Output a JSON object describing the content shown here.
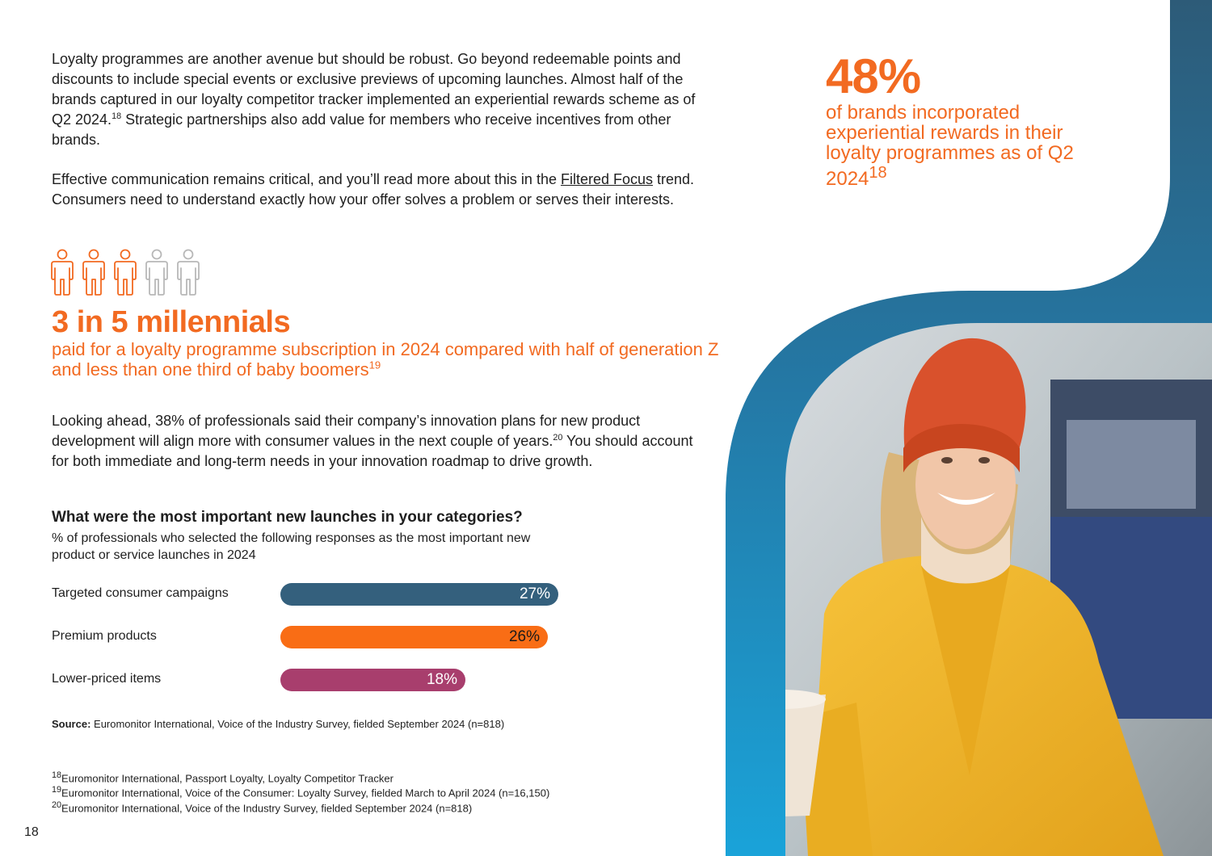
{
  "intro": {
    "paragraph_1": "Loyalty programmes are another avenue but should be robust. Go beyond redeemable points and discounts to include special events or exclusive previews of upcoming launches. Almost half of the brands captured in our loyalty competitor tracker implemented an experiential rewards scheme as of Q2 2024.",
    "paragraph_1_ref": "18",
    "paragraph_1_tail": " Strategic partnerships also add value for members who receive incentives from other brands.",
    "paragraph_2_start": "Effective communication remains critical, and you’ll read more about this in the ",
    "paragraph_2_link": "Filtered Focus",
    "paragraph_2_end": " trend. Consumers need to understand exactly how your offer solves a problem or serves their interests."
  },
  "millennials_stat": {
    "people_highlighted": 3,
    "people_total": 5,
    "headline": "3 in 5 millennials",
    "description": "paid for a loyalty programme subscription in 2024 compared with half of generation Z and less than one third of baby boomers",
    "ref": "19"
  },
  "highlight": {
    "value": "48%",
    "description": "of brands incorporated experiential rewards in their loyalty programmes as of Q2 2024",
    "ref": "18"
  },
  "outlook": {
    "text": "Looking ahead, 38% of professionals said their company’s innovation plans for new product development will align more with consumer values in the next couple of years.",
    "ref": "20",
    "tail": " You should account for both immediate and long-term needs in your innovation roadmap to drive growth."
  },
  "chart_data": {
    "type": "bar",
    "orientation": "horizontal",
    "title": "What were the most important new launches in your categories?",
    "subtitle": "% of professionals who selected the following responses as the most important new product or service launches in 2024",
    "categories": [
      "Targeted consumer campaigns",
      "Premium products",
      "Lower-priced items"
    ],
    "values": [
      27,
      26,
      18
    ],
    "value_labels": [
      "27%",
      "26%",
      "18%"
    ],
    "colors": [
      "#34607d",
      "#f96d15",
      "#a83e6d"
    ],
    "xlim": [
      0,
      27
    ]
  },
  "source": {
    "label": "Source:",
    "text": " Euromonitor International, Voice of the Industry Survey, fielded September 2024 (n=818)"
  },
  "footnotes": [
    {
      "num": "18",
      "text": "Euromonitor International, Passport Loyalty, Loyalty Competitor Tracker"
    },
    {
      "num": "19",
      "text": "Euromonitor International, Voice of the Consumer: Loyalty Survey, fielded March to April 2024 (n=16,150)"
    },
    {
      "num": "20",
      "text": "Euromonitor International, Voice of the Industry Survey, fielded September 2024 (n=818)"
    }
  ],
  "page_number": "18",
  "colors": {
    "orange": "#f26a21",
    "band_top": "#2d5b78",
    "band_bottom": "#1aa3d9",
    "text": "#1f1f1f"
  }
}
